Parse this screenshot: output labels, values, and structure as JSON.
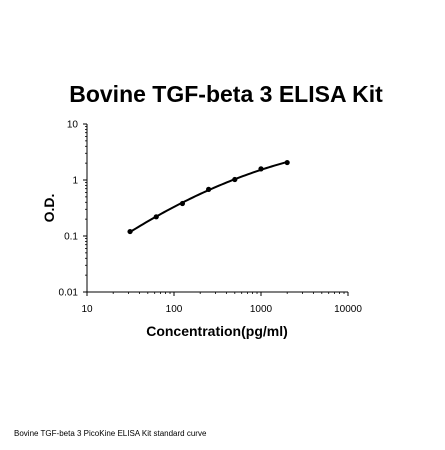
{
  "chart_data": {
    "type": "scatter",
    "title": "Bovine TGF-beta 3 ELISA Kit",
    "xlabel": "Concentration(pg/ml)",
    "ylabel": "O.D.",
    "xscale": "log",
    "yscale": "log",
    "xlim": [
      10,
      10000
    ],
    "ylim": [
      0.01,
      10
    ],
    "xticks": [
      "10",
      "100",
      "1000",
      "10000"
    ],
    "yticks": [
      "0.01",
      "0.1",
      "1",
      "10"
    ],
    "grid": false,
    "legend": "none",
    "series": [
      {
        "x": [
          31.25,
          62.5,
          125,
          250,
          500,
          1000,
          2000
        ],
        "y": [
          0.12,
          0.22,
          0.38,
          0.68,
          1.02,
          1.58,
          2.05
        ]
      }
    ],
    "curve": "fitted smooth line through points",
    "colors": {
      "marks": "#000000"
    }
  },
  "caption": "Bovine TGF-beta 3 PicoKine ELISA Kit standard curve"
}
